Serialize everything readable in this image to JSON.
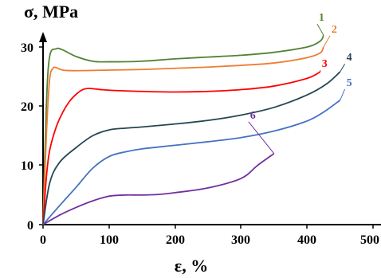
{
  "chart_data": {
    "type": "line",
    "title": "",
    "xlabel": "ε, %",
    "ylabel": "σ, MPa",
    "xlim": [
      0,
      500
    ],
    "ylim": [
      0,
      32
    ],
    "x_ticks": [
      "0",
      "100",
      "200",
      "300",
      "400",
      "500"
    ],
    "y_ticks": [
      "0",
      "10",
      "20",
      "30"
    ],
    "grid": false,
    "legend": "series numbers labeled at curve ends",
    "series": [
      {
        "name": "1",
        "color": "#548235",
        "x": [
          0,
          5,
          10,
          20,
          30,
          50,
          75,
          100,
          150,
          200,
          250,
          300,
          350,
          400,
          420,
          425
        ],
        "y": [
          0,
          20,
          28.4,
          29.7,
          29.5,
          28.4,
          27.6,
          27.5,
          27.6,
          28.0,
          28.3,
          28.6,
          29.1,
          30.0,
          31.0,
          32.0
        ]
      },
      {
        "name": "2",
        "color": "#ED7D31",
        "x": [
          0,
          5,
          10,
          15,
          20,
          30,
          50,
          100,
          150,
          200,
          250,
          300,
          350,
          400,
          420,
          425
        ],
        "y": [
          0,
          15,
          24.5,
          26.4,
          26.5,
          26.1,
          26.0,
          26.1,
          26.2,
          26.4,
          26.6,
          26.9,
          27.3,
          28.2,
          29.0,
          30.0
        ]
      },
      {
        "name": "3",
        "color": "#FF0000",
        "x": [
          0,
          5,
          10,
          20,
          30,
          40,
          50,
          60,
          70,
          80,
          100,
          150,
          200,
          250,
          300,
          350,
          400,
          420
        ],
        "y": [
          0,
          8,
          12.5,
          16.5,
          19.0,
          20.8,
          22.0,
          22.8,
          23.0,
          22.9,
          22.7,
          22.5,
          22.4,
          22.5,
          22.8,
          23.4,
          24.7,
          25.8
        ]
      },
      {
        "name": "4",
        "color": "#264653",
        "x": [
          0,
          10,
          25,
          50,
          75,
          100,
          125,
          150,
          200,
          250,
          300,
          350,
          400,
          430,
          450
        ],
        "y": [
          0,
          7,
          10.5,
          13.0,
          15.0,
          16.0,
          16.3,
          16.5,
          17.0,
          17.6,
          18.5,
          19.8,
          21.9,
          23.8,
          25.8
        ]
      },
      {
        "name": "5",
        "color": "#4472C4",
        "x": [
          0,
          25,
          50,
          75,
          100,
          125,
          150,
          200,
          250,
          300,
          350,
          400,
          425,
          450
        ],
        "y": [
          0,
          3.2,
          6.3,
          9.5,
          11.5,
          12.3,
          12.8,
          13.4,
          14.0,
          14.7,
          15.8,
          17.5,
          19.0,
          21.0
        ]
      },
      {
        "name": "6",
        "color": "#7030A0",
        "x": [
          0,
          25,
          50,
          75,
          100,
          125,
          150,
          175,
          200,
          250,
          300,
          325,
          350
        ],
        "y": [
          0,
          1.6,
          2.9,
          4.0,
          4.8,
          5.0,
          5.0,
          5.1,
          5.4,
          6.2,
          7.8,
          10.0,
          12.0
        ]
      }
    ]
  }
}
